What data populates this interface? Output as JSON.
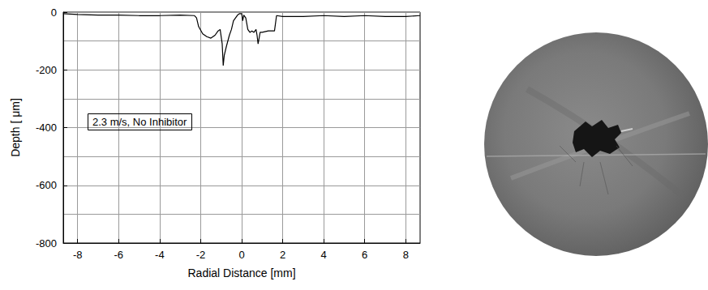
{
  "chart_data": {
    "type": "line",
    "xlabel": "Radial Distance [mm]",
    "ylabel": "Depth [ μm]",
    "annotation": "2.3 m/s, No Inhibitor",
    "x": [
      -8.7,
      -8.0,
      -7.0,
      -6.0,
      -5.0,
      -4.0,
      -3.0,
      -2.3,
      -2.2,
      -2.1,
      -1.9,
      -1.7,
      -1.5,
      -1.3,
      -1.15,
      -1.05,
      -0.95,
      -0.9,
      -0.85,
      -0.75,
      -0.6,
      -0.5,
      -0.4,
      -0.3,
      -0.2,
      -0.1,
      0.0,
      0.05,
      0.1,
      0.2,
      0.3,
      0.4,
      0.5,
      0.6,
      0.7,
      0.75,
      0.8,
      0.85,
      0.9,
      1.0,
      1.3,
      1.6,
      1.7,
      2.0,
      3.0,
      4.0,
      5.0,
      6.0,
      7.0,
      8.0,
      8.7
    ],
    "values": [
      -5,
      -8,
      -10,
      -10,
      -12,
      -12,
      -10,
      -12,
      -20,
      -50,
      -75,
      -85,
      -90,
      -80,
      -65,
      -60,
      -110,
      -185,
      -150,
      -120,
      -80,
      -60,
      -30,
      -20,
      -10,
      -5,
      -5,
      -30,
      -10,
      -20,
      -60,
      -70,
      -65,
      -70,
      -60,
      -80,
      -110,
      -90,
      -70,
      -70,
      -65,
      -65,
      -12,
      -15,
      -15,
      -12,
      -15,
      -12,
      -15,
      -15,
      -12
    ],
    "color": "#000000",
    "xlim": [
      -8.7,
      8.7
    ],
    "ylim": [
      -800,
      0
    ],
    "xticks": [
      -8,
      -6,
      -4,
      -2,
      0,
      2,
      4,
      6,
      8
    ],
    "yticks": [
      -800,
      -600,
      -400,
      -200,
      0
    ],
    "grid": true
  }
}
